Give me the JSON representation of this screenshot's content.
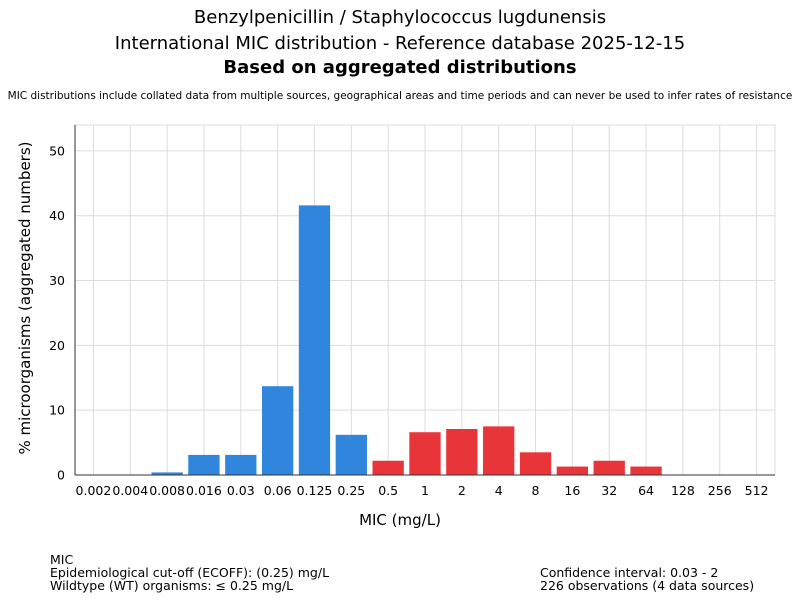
{
  "chart_data": {
    "type": "bar",
    "title_lines": [
      "Benzylpenicillin / Staphylococcus lugdunensis",
      "International MIC distribution - Reference database 2025-12-15",
      "Based on aggregated distributions"
    ],
    "subtitle": "MIC distributions include collated data from multiple sources, geographical areas and time periods and can never be used to infer rates of resistance",
    "xlabel": "MIC (mg/L)",
    "ylabel": "% microorganisms (aggregated numbers)",
    "categories": [
      "0.002",
      "0.004",
      "0.008",
      "0.016",
      "0.03",
      "0.06",
      "0.125",
      "0.25",
      "0.5",
      "1",
      "2",
      "4",
      "8",
      "16",
      "32",
      "64",
      "128",
      "256",
      "512"
    ],
    "values": [
      0,
      0,
      0.4,
      3.1,
      3.1,
      13.7,
      41.6,
      6.2,
      2.2,
      6.6,
      7.1,
      7.5,
      3.5,
      1.3,
      2.2,
      1.3,
      0,
      0,
      0
    ],
    "wildtype_flags": [
      true,
      true,
      true,
      true,
      true,
      true,
      true,
      true,
      false,
      false,
      false,
      false,
      false,
      false,
      false,
      false,
      false,
      false,
      false
    ],
    "yticks": [
      0,
      10,
      20,
      30,
      40,
      50
    ],
    "ylim": [
      0,
      54
    ],
    "grid": true,
    "colors": {
      "wildtype": "#2f86dc",
      "non_wildtype": "#e8353a",
      "grid": "#dcdcdc",
      "axis": "#333333"
    }
  },
  "footer": {
    "left": [
      "MIC",
      "Epidemiological cut-off (ECOFF): (0.25) mg/L",
      "Wildtype (WT) organisms: ≤ 0.25 mg/L"
    ],
    "right": [
      "Confidence interval: 0.03 - 2",
      "226 observations (4 data sources)"
    ]
  }
}
